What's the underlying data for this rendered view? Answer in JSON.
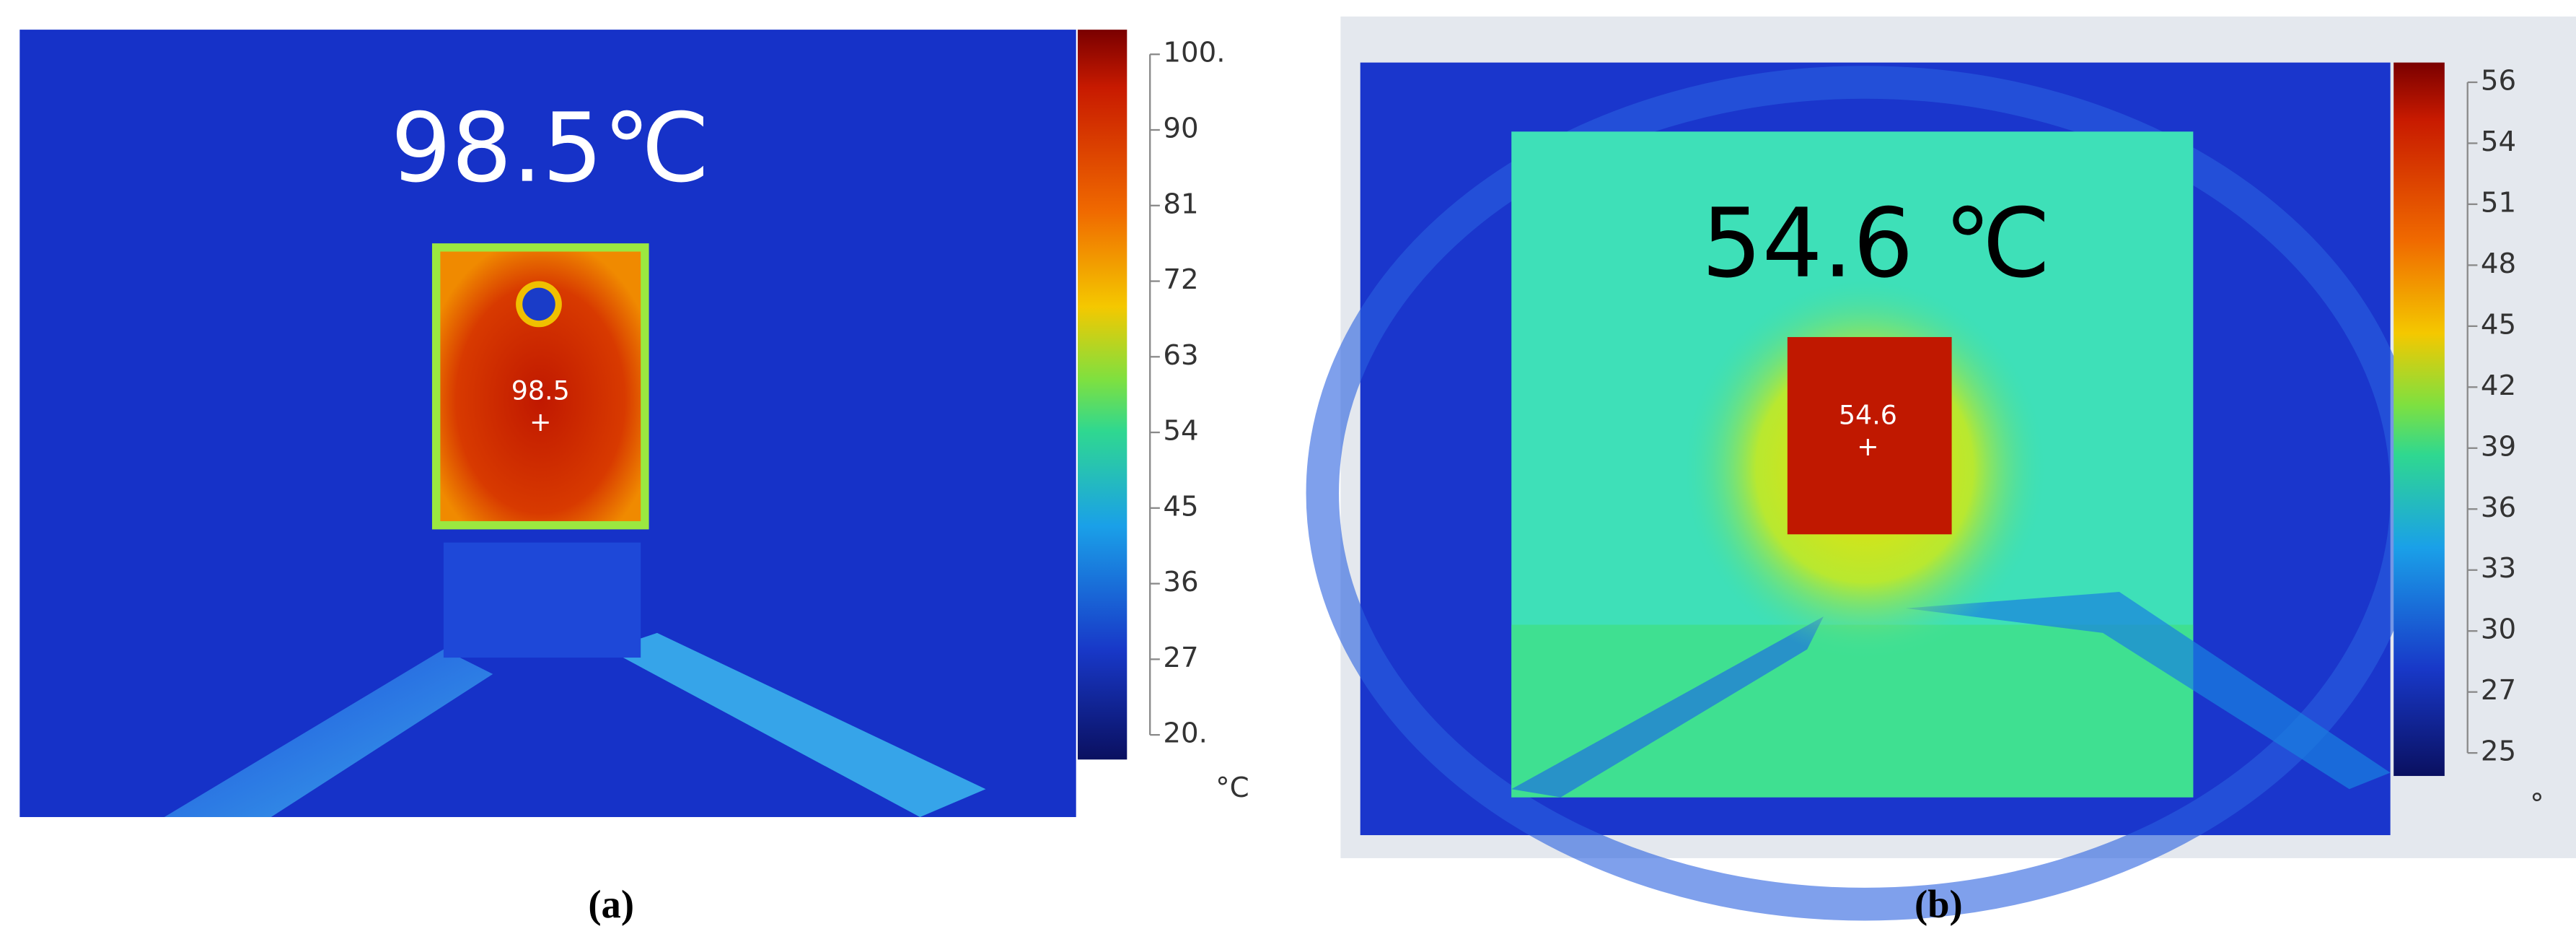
{
  "panels": [
    {
      "big_label": "98.5℃",
      "spot_label": "98.5",
      "marker": "+",
      "scale_ticks": [
        "100.",
        "90",
        "81",
        "72",
        "63",
        "54",
        "45",
        "36",
        "27",
        "20."
      ],
      "unit": "°C",
      "caption": "(a)"
    },
    {
      "big_label": "54.6 ℃",
      "spot_label": "54.6",
      "marker": "+",
      "scale_ticks": [
        "56",
        "54",
        "51",
        "48",
        "45",
        "42",
        "39",
        "36",
        "33",
        "30",
        "27",
        "25"
      ],
      "unit": "°",
      "caption": "(b)"
    }
  ]
}
